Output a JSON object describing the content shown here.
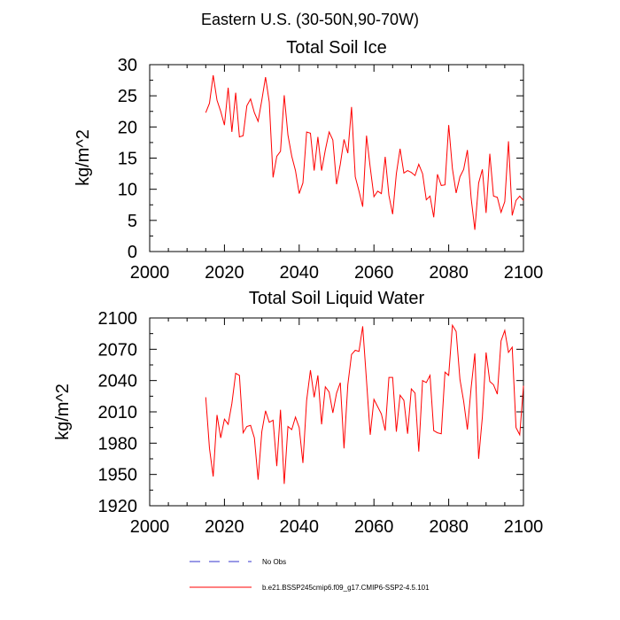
{
  "figure_title": "Eastern U.S. (30-50N,90-70W)",
  "legend": [
    {
      "label": "No Obs",
      "color": "#3333cc",
      "dashed": true
    },
    {
      "label": "b.e21.BSSP245cmip6.f09_g17.CMIP6-SSP2-4.5.101",
      "color": "#ff0000",
      "dashed": false
    }
  ],
  "chart_data": [
    {
      "type": "line",
      "title": "Total Soil Ice",
      "xlabel": "",
      "ylabel": "kg/m^2",
      "xlim": [
        2000,
        2100
      ],
      "ylim": [
        0,
        30
      ],
      "xticks": [
        2000,
        2020,
        2040,
        2060,
        2080,
        2100
      ],
      "yticks": [
        0,
        5,
        10,
        15,
        20,
        25,
        30
      ],
      "color": "#ff0000",
      "x": [
        2015,
        2016,
        2017,
        2018,
        2019,
        2020,
        2021,
        2022,
        2023,
        2024,
        2025,
        2026,
        2027,
        2028,
        2029,
        2030,
        2031,
        2032,
        2033,
        2034,
        2035,
        2036,
        2037,
        2038,
        2039,
        2040,
        2041,
        2042,
        2043,
        2044,
        2045,
        2046,
        2047,
        2048,
        2049,
        2050,
        2051,
        2052,
        2053,
        2054,
        2055,
        2056,
        2057,
        2058,
        2059,
        2060,
        2061,
        2062,
        2063,
        2064,
        2065,
        2066,
        2067,
        2068,
        2069,
        2070,
        2071,
        2072,
        2073,
        2074,
        2075,
        2076,
        2077,
        2078,
        2079,
        2080,
        2081,
        2082,
        2083,
        2084,
        2085,
        2086,
        2087,
        2088,
        2089,
        2090,
        2091,
        2092,
        2093,
        2094,
        2095,
        2096,
        2097,
        2098,
        2099,
        2100
      ],
      "values": [
        22.3,
        23.8,
        28.3,
        24.3,
        22.5,
        20.3,
        26.3,
        19.2,
        25.5,
        18.4,
        18.6,
        23.4,
        24.5,
        22.3,
        20.9,
        24.3,
        28.0,
        24.0,
        11.9,
        15.3,
        16.1,
        25.1,
        18.7,
        15.3,
        13.0,
        9.3,
        11.0,
        19.2,
        19.0,
        13.0,
        18.4,
        13.0,
        16.3,
        19.2,
        17.9,
        10.8,
        14.0,
        18.0,
        15.8,
        23.2,
        12.0,
        9.7,
        7.2,
        18.6,
        13.5,
        8.8,
        9.7,
        9.3,
        15.2,
        9.0,
        6.0,
        12.5,
        16.5,
        12.6,
        13.0,
        12.7,
        12.2,
        14.0,
        12.5,
        8.3,
        8.9,
        5.5,
        12.4,
        10.6,
        10.7,
        20.3,
        13.3,
        9.4,
        12.0,
        13.2,
        16.3,
        8.6,
        3.5,
        11.0,
        13.2,
        6.2,
        15.7,
        8.9,
        8.7,
        6.3,
        8.0,
        17.7,
        5.8,
        8.2,
        8.9,
        8.2
      ]
    },
    {
      "type": "line",
      "title": "Total Soil Liquid Water",
      "xlabel": "",
      "ylabel": "kg/m^2",
      "xlim": [
        2000,
        2100
      ],
      "ylim": [
        1920,
        2100
      ],
      "xticks": [
        2000,
        2020,
        2040,
        2060,
        2080,
        2100
      ],
      "yticks": [
        1920,
        1950,
        1980,
        2010,
        2040,
        2070,
        2100
      ],
      "color": "#ff0000",
      "x": [
        2015,
        2016,
        2017,
        2018,
        2019,
        2020,
        2021,
        2022,
        2023,
        2024,
        2025,
        2026,
        2027,
        2028,
        2029,
        2030,
        2031,
        2032,
        2033,
        2034,
        2035,
        2036,
        2037,
        2038,
        2039,
        2040,
        2041,
        2042,
        2043,
        2044,
        2045,
        2046,
        2047,
        2048,
        2049,
        2050,
        2051,
        2052,
        2053,
        2054,
        2055,
        2056,
        2057,
        2058,
        2059,
        2060,
        2061,
        2062,
        2063,
        2064,
        2065,
        2066,
        2067,
        2068,
        2069,
        2070,
        2071,
        2072,
        2073,
        2074,
        2075,
        2076,
        2077,
        2078,
        2079,
        2080,
        2081,
        2082,
        2083,
        2084,
        2085,
        2086,
        2087,
        2088,
        2089,
        2090,
        2091,
        2092,
        2093,
        2094,
        2095,
        2096,
        2097,
        2098,
        2099,
        2100
      ],
      "values": [
        2024,
        1975,
        1948,
        2007,
        1985,
        2003,
        1998,
        2018,
        2047,
        2045,
        1990,
        1996,
        1997,
        1985,
        1945,
        1991,
        2011,
        2000,
        2002,
        1958,
        2012,
        1941,
        1996,
        1993,
        2005,
        1995,
        1961,
        2021,
        2050,
        2024,
        2045,
        1998,
        2034,
        2029,
        2009,
        2028,
        2038,
        1975,
        2036,
        2065,
        2069,
        2068,
        2092,
        2040,
        1988,
        2022,
        2015,
        2008,
        1992,
        2043,
        2043,
        1991,
        2026,
        2021,
        1989,
        2032,
        2028,
        1972,
        2040,
        2038,
        2045,
        1992,
        1990,
        1989,
        2048,
        2045,
        2093,
        2087,
        2041,
        2020,
        1993,
        2033,
        2066,
        1965,
        2005,
        2067,
        2039,
        2036,
        2027,
        2078,
        2088,
        2067,
        2072,
        1995,
        1988,
        2035
      ]
    }
  ]
}
